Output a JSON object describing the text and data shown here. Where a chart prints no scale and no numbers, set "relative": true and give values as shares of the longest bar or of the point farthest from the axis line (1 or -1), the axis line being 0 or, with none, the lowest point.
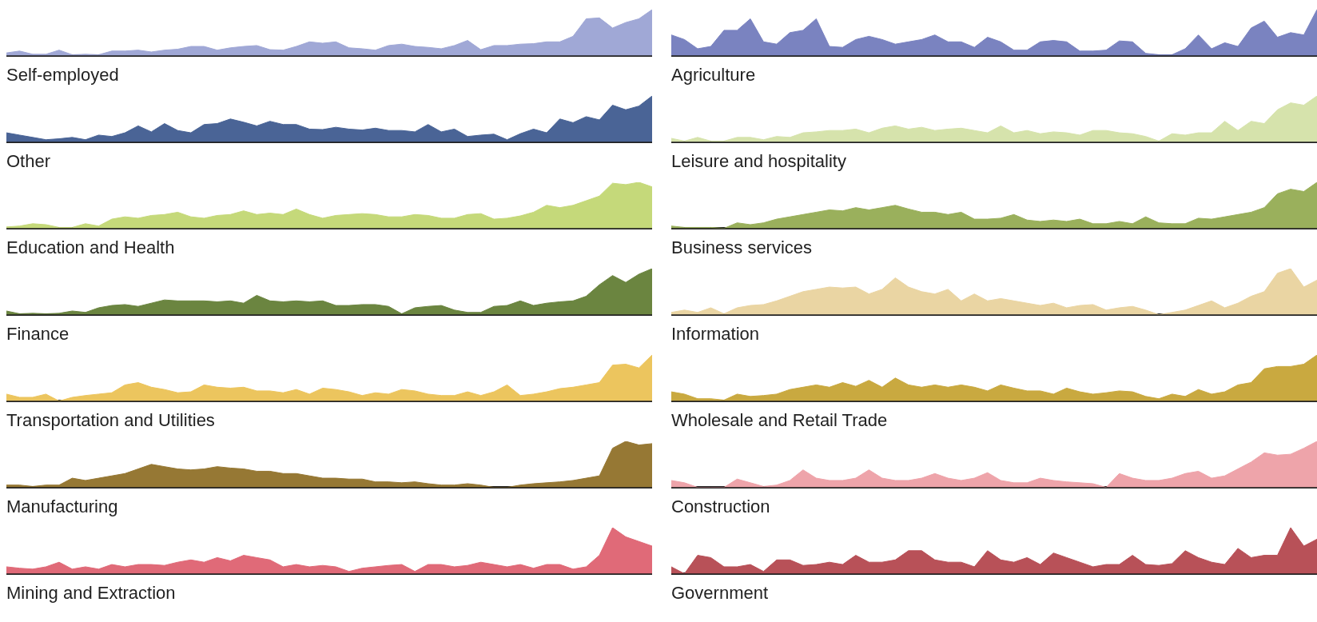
{
  "chart_data": [
    {
      "type": "area",
      "title": "Self-employed",
      "relative": true,
      "color": "#a0a8d6",
      "categories": [
        null,
        null,
        null,
        null,
        null,
        null,
        null,
        null,
        null,
        null,
        null,
        null,
        null,
        null,
        null,
        null,
        null,
        null,
        null,
        null,
        null,
        null,
        null,
        null,
        null,
        null,
        null,
        null,
        null,
        null,
        null,
        null,
        null,
        null,
        null,
        null,
        null,
        null,
        null,
        null,
        null,
        null,
        null,
        null,
        null,
        null,
        null,
        null,
        null,
        null
      ],
      "values": [
        0.06,
        0.1,
        0.03,
        0.03,
        0.12,
        0.02,
        0.03,
        0.02,
        0.1,
        0.1,
        0.12,
        0.08,
        0.12,
        0.14,
        0.2,
        0.2,
        0.12,
        0.17,
        0.2,
        0.22,
        0.13,
        0.12,
        0.2,
        0.3,
        0.27,
        0.3,
        0.17,
        0.15,
        0.12,
        0.22,
        0.25,
        0.2,
        0.18,
        0.15,
        0.22,
        0.33,
        0.13,
        0.22,
        0.22,
        0.25,
        0.26,
        0.3,
        0.3,
        0.42,
        0.8,
        0.82,
        0.6,
        0.72,
        0.8,
        1.0
      ]
    },
    {
      "type": "area",
      "title": "Agriculture",
      "relative": true,
      "color": "#7a83c0",
      "categories": [
        null,
        null,
        null,
        null,
        null,
        null,
        null,
        null,
        null,
        null,
        null,
        null,
        null,
        null,
        null,
        null,
        null,
        null,
        null,
        null,
        null,
        null,
        null,
        null,
        null,
        null,
        null,
        null,
        null,
        null,
        null,
        null,
        null,
        null,
        null,
        null,
        null,
        null,
        null,
        null,
        null,
        null,
        null,
        null,
        null,
        null,
        null,
        null,
        null,
        null
      ],
      "values": [
        0.45,
        0.35,
        0.15,
        0.2,
        0.55,
        0.55,
        0.8,
        0.3,
        0.25,
        0.5,
        0.55,
        0.8,
        0.2,
        0.18,
        0.35,
        0.42,
        0.35,
        0.25,
        0.3,
        0.35,
        0.45,
        0.3,
        0.3,
        0.18,
        0.4,
        0.3,
        0.12,
        0.12,
        0.3,
        0.33,
        0.3,
        0.1,
        0.1,
        0.12,
        0.32,
        0.3,
        0.05,
        0.02,
        0.02,
        0.15,
        0.45,
        0.15,
        0.28,
        0.2,
        0.6,
        0.75,
        0.4,
        0.5,
        0.45,
        1.0
      ]
    },
    {
      "type": "area",
      "title": "Other",
      "relative": true,
      "color": "#4a6496",
      "categories": [
        null,
        null,
        null,
        null,
        null,
        null,
        null,
        null,
        null,
        null,
        null,
        null,
        null,
        null,
        null,
        null,
        null,
        null,
        null,
        null,
        null,
        null,
        null,
        null,
        null,
        null,
        null,
        null,
        null,
        null,
        null,
        null,
        null,
        null,
        null,
        null,
        null,
        null,
        null,
        null,
        null,
        null,
        null,
        null,
        null,
        null,
        null,
        null,
        null,
        null
      ],
      "values": [
        0.2,
        0.15,
        0.1,
        0.05,
        0.07,
        0.1,
        0.05,
        0.15,
        0.12,
        0.2,
        0.35,
        0.22,
        0.4,
        0.25,
        0.2,
        0.38,
        0.4,
        0.5,
        0.43,
        0.35,
        0.45,
        0.38,
        0.38,
        0.28,
        0.27,
        0.32,
        0.28,
        0.26,
        0.3,
        0.25,
        0.25,
        0.22,
        0.38,
        0.22,
        0.28,
        0.12,
        0.15,
        0.17,
        0.05,
        0.18,
        0.28,
        0.2,
        0.5,
        0.42,
        0.55,
        0.48,
        0.8,
        0.7,
        0.78,
        1.0
      ]
    },
    {
      "type": "area",
      "title": "Leisure and hospitality",
      "relative": true,
      "color": "#d6e3ac",
      "categories": [
        null,
        null,
        null,
        null,
        null,
        null,
        null,
        null,
        null,
        null,
        null,
        null,
        null,
        null,
        null,
        null,
        null,
        null,
        null,
        null,
        null,
        null,
        null,
        null,
        null,
        null,
        null,
        null,
        null,
        null,
        null,
        null,
        null,
        null,
        null,
        null,
        null,
        null,
        null,
        null,
        null,
        null,
        null,
        null,
        null,
        null,
        null,
        null,
        null,
        null
      ],
      "values": [
        0.08,
        0.02,
        0.1,
        0.02,
        0.02,
        0.1,
        0.1,
        0.05,
        0.12,
        0.1,
        0.2,
        0.22,
        0.25,
        0.25,
        0.28,
        0.2,
        0.3,
        0.35,
        0.28,
        0.32,
        0.25,
        0.28,
        0.3,
        0.25,
        0.2,
        0.35,
        0.2,
        0.25,
        0.18,
        0.22,
        0.2,
        0.15,
        0.25,
        0.25,
        0.2,
        0.18,
        0.12,
        0.02,
        0.18,
        0.15,
        0.2,
        0.2,
        0.45,
        0.25,
        0.45,
        0.4,
        0.7,
        0.85,
        0.8,
        1.0
      ]
    },
    {
      "type": "area",
      "title": "Education and Health",
      "relative": true,
      "color": "#c5d97a",
      "categories": [
        null,
        null,
        null,
        null,
        null,
        null,
        null,
        null,
        null,
        null,
        null,
        null,
        null,
        null,
        null,
        null,
        null,
        null,
        null,
        null,
        null,
        null,
        null,
        null,
        null,
        null,
        null,
        null,
        null,
        null,
        null,
        null,
        null,
        null,
        null,
        null,
        null,
        null,
        null,
        null,
        null,
        null,
        null,
        null,
        null,
        null,
        null,
        null,
        null,
        null
      ],
      "values": [
        0.03,
        0.05,
        0.1,
        0.08,
        0.02,
        0.02,
        0.1,
        0.05,
        0.2,
        0.25,
        0.22,
        0.28,
        0.3,
        0.35,
        0.25,
        0.22,
        0.28,
        0.3,
        0.38,
        0.3,
        0.33,
        0.3,
        0.42,
        0.3,
        0.22,
        0.28,
        0.3,
        0.32,
        0.3,
        0.25,
        0.25,
        0.3,
        0.28,
        0.22,
        0.22,
        0.3,
        0.32,
        0.2,
        0.22,
        0.27,
        0.35,
        0.5,
        0.45,
        0.5,
        0.6,
        0.7,
        0.98,
        0.95,
        1.0,
        0.9
      ]
    },
    {
      "type": "area",
      "title": "Business services",
      "relative": true,
      "color": "#9ab05c",
      "categories": [
        null,
        null,
        null,
        null,
        null,
        null,
        null,
        null,
        null,
        null,
        null,
        null,
        null,
        null,
        null,
        null,
        null,
        null,
        null,
        null,
        null,
        null,
        null,
        null,
        null,
        null,
        null,
        null,
        null,
        null,
        null,
        null,
        null,
        null,
        null,
        null,
        null,
        null,
        null,
        null,
        null,
        null,
        null,
        null,
        null,
        null,
        null,
        null,
        null,
        null
      ],
      "values": [
        0.05,
        0.02,
        0.02,
        0.02,
        0.0,
        0.12,
        0.08,
        0.12,
        0.2,
        0.25,
        0.3,
        0.35,
        0.4,
        0.38,
        0.45,
        0.4,
        0.45,
        0.5,
        0.42,
        0.35,
        0.35,
        0.3,
        0.35,
        0.2,
        0.2,
        0.22,
        0.3,
        0.18,
        0.15,
        0.18,
        0.15,
        0.2,
        0.1,
        0.1,
        0.15,
        0.1,
        0.25,
        0.12,
        0.1,
        0.1,
        0.22,
        0.2,
        0.25,
        0.3,
        0.35,
        0.45,
        0.75,
        0.85,
        0.8,
        1.0
      ]
    },
    {
      "type": "area",
      "title": "Finance",
      "relative": true,
      "color": "#6b8540",
      "categories": [
        null,
        null,
        null,
        null,
        null,
        null,
        null,
        null,
        null,
        null,
        null,
        null,
        null,
        null,
        null,
        null,
        null,
        null,
        null,
        null,
        null,
        null,
        null,
        null,
        null,
        null,
        null,
        null,
        null,
        null,
        null,
        null,
        null,
        null,
        null,
        null,
        null,
        null,
        null,
        null,
        null,
        null,
        null,
        null,
        null,
        null,
        null,
        null,
        null,
        null
      ],
      "values": [
        0.08,
        0.02,
        0.03,
        0.02,
        0.03,
        0.08,
        0.05,
        0.15,
        0.2,
        0.22,
        0.18,
        0.25,
        0.32,
        0.3,
        0.3,
        0.3,
        0.28,
        0.3,
        0.25,
        0.42,
        0.3,
        0.28,
        0.3,
        0.28,
        0.3,
        0.2,
        0.2,
        0.22,
        0.22,
        0.18,
        0.02,
        0.15,
        0.18,
        0.2,
        0.1,
        0.05,
        0.05,
        0.18,
        0.2,
        0.3,
        0.2,
        0.25,
        0.28,
        0.3,
        0.4,
        0.65,
        0.85,
        0.7,
        0.88,
        1.0
      ]
    },
    {
      "type": "area",
      "title": "Information",
      "relative": true,
      "color": "#ead5a3",
      "categories": [
        null,
        null,
        null,
        null,
        null,
        null,
        null,
        null,
        null,
        null,
        null,
        null,
        null,
        null,
        null,
        null,
        null,
        null,
        null,
        null,
        null,
        null,
        null,
        null,
        null,
        null,
        null,
        null,
        null,
        null,
        null,
        null,
        null,
        null,
        null,
        null,
        null,
        null,
        null,
        null,
        null,
        null,
        null,
        null,
        null,
        null,
        null,
        null,
        null,
        null
      ],
      "values": [
        0.05,
        0.1,
        0.05,
        0.15,
        0.02,
        0.15,
        0.2,
        0.22,
        0.3,
        0.4,
        0.5,
        0.55,
        0.6,
        0.58,
        0.6,
        0.45,
        0.55,
        0.8,
        0.6,
        0.5,
        0.45,
        0.55,
        0.3,
        0.45,
        0.3,
        0.35,
        0.3,
        0.25,
        0.2,
        0.25,
        0.15,
        0.2,
        0.22,
        0.1,
        0.15,
        0.18,
        0.1,
        0.0,
        0.05,
        0.1,
        0.2,
        0.3,
        0.15,
        0.25,
        0.4,
        0.5,
        0.9,
        1.0,
        0.6,
        0.75
      ]
    },
    {
      "type": "area",
      "title": "Transportation and Utilities",
      "relative": true,
      "color": "#ecc55e",
      "categories": [
        null,
        null,
        null,
        null,
        null,
        null,
        null,
        null,
        null,
        null,
        null,
        null,
        null,
        null,
        null,
        null,
        null,
        null,
        null,
        null,
        null,
        null,
        null,
        null,
        null,
        null,
        null,
        null,
        null,
        null,
        null,
        null,
        null,
        null,
        null,
        null,
        null,
        null,
        null,
        null,
        null,
        null,
        null,
        null,
        null,
        null,
        null,
        null,
        null,
        null
      ],
      "values": [
        0.15,
        0.08,
        0.08,
        0.15,
        0.0,
        0.08,
        0.12,
        0.15,
        0.18,
        0.35,
        0.4,
        0.3,
        0.25,
        0.18,
        0.2,
        0.35,
        0.3,
        0.28,
        0.3,
        0.22,
        0.22,
        0.18,
        0.25,
        0.15,
        0.28,
        0.25,
        0.2,
        0.12,
        0.18,
        0.15,
        0.25,
        0.22,
        0.15,
        0.12,
        0.12,
        0.2,
        0.12,
        0.2,
        0.35,
        0.12,
        0.15,
        0.2,
        0.27,
        0.3,
        0.35,
        0.4,
        0.78,
        0.8,
        0.72,
        1.0
      ]
    },
    {
      "type": "area",
      "title": "Wholesale and Retail Trade",
      "relative": true,
      "color": "#c9a940",
      "categories": [
        null,
        null,
        null,
        null,
        null,
        null,
        null,
        null,
        null,
        null,
        null,
        null,
        null,
        null,
        null,
        null,
        null,
        null,
        null,
        null,
        null,
        null,
        null,
        null,
        null,
        null,
        null,
        null,
        null,
        null,
        null,
        null,
        null,
        null,
        null,
        null,
        null,
        null,
        null,
        null,
        null,
        null,
        null,
        null,
        null,
        null,
        null,
        null,
        null,
        null
      ],
      "values": [
        0.2,
        0.15,
        0.05,
        0.05,
        0.02,
        0.15,
        0.1,
        0.12,
        0.15,
        0.25,
        0.3,
        0.35,
        0.3,
        0.4,
        0.32,
        0.45,
        0.3,
        0.5,
        0.35,
        0.3,
        0.35,
        0.3,
        0.35,
        0.3,
        0.22,
        0.35,
        0.28,
        0.22,
        0.22,
        0.15,
        0.28,
        0.2,
        0.15,
        0.18,
        0.22,
        0.2,
        0.1,
        0.05,
        0.15,
        0.1,
        0.25,
        0.15,
        0.2,
        0.35,
        0.4,
        0.7,
        0.75,
        0.75,
        0.8,
        1.0
      ]
    },
    {
      "type": "area",
      "title": "Manufacturing",
      "relative": true,
      "color": "#967834",
      "categories": [
        null,
        null,
        null,
        null,
        null,
        null,
        null,
        null,
        null,
        null,
        null,
        null,
        null,
        null,
        null,
        null,
        null,
        null,
        null,
        null,
        null,
        null,
        null,
        null,
        null,
        null,
        null,
        null,
        null,
        null,
        null,
        null,
        null,
        null,
        null,
        null,
        null,
        null,
        null,
        null,
        null,
        null,
        null,
        null,
        null,
        null,
        null,
        null,
        null,
        null
      ],
      "values": [
        0.05,
        0.05,
        0.02,
        0.05,
        0.05,
        0.2,
        0.15,
        0.2,
        0.25,
        0.3,
        0.4,
        0.5,
        0.45,
        0.4,
        0.38,
        0.4,
        0.45,
        0.42,
        0.4,
        0.35,
        0.35,
        0.3,
        0.3,
        0.25,
        0.2,
        0.2,
        0.18,
        0.18,
        0.12,
        0.12,
        0.1,
        0.12,
        0.08,
        0.05,
        0.05,
        0.08,
        0.05,
        0.0,
        0.0,
        0.05,
        0.08,
        0.1,
        0.12,
        0.15,
        0.2,
        0.25,
        0.85,
        1.0,
        0.92,
        0.95
      ]
    },
    {
      "type": "area",
      "title": "Construction",
      "relative": true,
      "color": "#eea4aa",
      "categories": [
        null,
        null,
        null,
        null,
        null,
        null,
        null,
        null,
        null,
        null,
        null,
        null,
        null,
        null,
        null,
        null,
        null,
        null,
        null,
        null,
        null,
        null,
        null,
        null,
        null,
        null,
        null,
        null,
        null,
        null,
        null,
        null,
        null,
        null,
        null,
        null,
        null,
        null,
        null,
        null,
        null,
        null,
        null,
        null,
        null,
        null,
        null,
        null,
        null,
        null
      ],
      "values": [
        0.15,
        0.1,
        0.0,
        0.0,
        0.0,
        0.18,
        0.1,
        0.02,
        0.05,
        0.15,
        0.38,
        0.2,
        0.15,
        0.15,
        0.2,
        0.38,
        0.2,
        0.15,
        0.15,
        0.2,
        0.3,
        0.2,
        0.15,
        0.2,
        0.32,
        0.15,
        0.1,
        0.1,
        0.2,
        0.15,
        0.12,
        0.1,
        0.08,
        0.0,
        0.3,
        0.2,
        0.15,
        0.15,
        0.2,
        0.3,
        0.35,
        0.2,
        0.25,
        0.4,
        0.55,
        0.75,
        0.7,
        0.72,
        0.85,
        1.0
      ]
    },
    {
      "type": "area",
      "title": "Mining and Extraction",
      "relative": true,
      "color": "#e06a78",
      "categories": [
        null,
        null,
        null,
        null,
        null,
        null,
        null,
        null,
        null,
        null,
        null,
        null,
        null,
        null,
        null,
        null,
        null,
        null,
        null,
        null,
        null,
        null,
        null,
        null,
        null,
        null,
        null,
        null,
        null,
        null,
        null,
        null,
        null,
        null,
        null,
        null,
        null,
        null,
        null,
        null,
        null,
        null,
        null,
        null,
        null,
        null,
        null,
        null,
        null,
        null
      ],
      "values": [
        0.15,
        0.12,
        0.1,
        0.15,
        0.25,
        0.1,
        0.15,
        0.1,
        0.2,
        0.15,
        0.2,
        0.2,
        0.18,
        0.25,
        0.3,
        0.25,
        0.35,
        0.28,
        0.4,
        0.35,
        0.3,
        0.15,
        0.2,
        0.15,
        0.18,
        0.15,
        0.05,
        0.12,
        0.15,
        0.18,
        0.2,
        0.05,
        0.2,
        0.2,
        0.15,
        0.18,
        0.25,
        0.2,
        0.15,
        0.2,
        0.12,
        0.2,
        0.2,
        0.1,
        0.15,
        0.4,
        1.0,
        0.8,
        0.7,
        0.6
      ]
    },
    {
      "type": "area",
      "title": "Government",
      "relative": true,
      "color": "#b85158",
      "categories": [
        null,
        null,
        null,
        null,
        null,
        null,
        null,
        null,
        null,
        null,
        null,
        null,
        null,
        null,
        null,
        null,
        null,
        null,
        null,
        null,
        null,
        null,
        null,
        null,
        null,
        null,
        null,
        null,
        null,
        null,
        null,
        null,
        null,
        null,
        null,
        null,
        null,
        null,
        null,
        null,
        null,
        null,
        null,
        null,
        null,
        null,
        null,
        null,
        null,
        null
      ],
      "values": [
        0.15,
        0.0,
        0.4,
        0.35,
        0.15,
        0.15,
        0.2,
        0.05,
        0.3,
        0.3,
        0.18,
        0.2,
        0.25,
        0.2,
        0.4,
        0.25,
        0.25,
        0.3,
        0.5,
        0.5,
        0.3,
        0.25,
        0.25,
        0.15,
        0.5,
        0.3,
        0.25,
        0.35,
        0.2,
        0.45,
        0.35,
        0.25,
        0.15,
        0.2,
        0.2,
        0.4,
        0.2,
        0.18,
        0.22,
        0.5,
        0.35,
        0.25,
        0.2,
        0.55,
        0.35,
        0.4,
        0.4,
        1.0,
        0.6,
        0.75
      ]
    }
  ]
}
